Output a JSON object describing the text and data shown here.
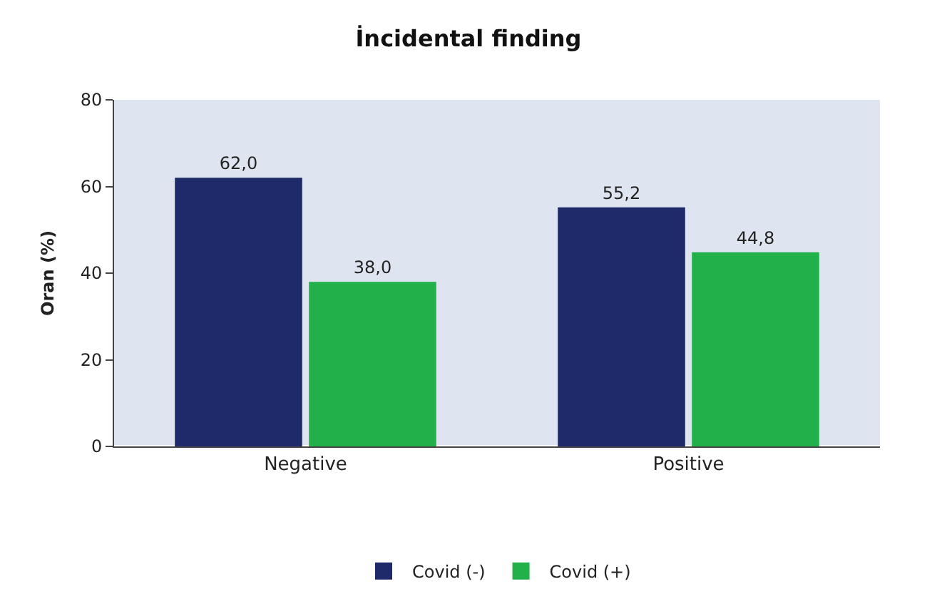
{
  "chart_data": {
    "type": "bar",
    "title": "İncidental finding",
    "ylabel": "Oran (%)",
    "categories": [
      "Negative",
      "Positive"
    ],
    "series": [
      {
        "name": "Covid (-)",
        "color": "#1f2a6b",
        "values": [
          62.0,
          55.2
        ],
        "value_labels": [
          "62,0",
          "55,2"
        ]
      },
      {
        "name": "Covid (+)",
        "color": "#22b04b",
        "values": [
          38.0,
          44.8
        ],
        "value_labels": [
          "38,0",
          "44,8"
        ]
      }
    ],
    "ylim": [
      0,
      80
    ],
    "yticks": [
      0,
      20,
      40,
      60,
      80
    ],
    "grid": false,
    "legend": "bottom"
  }
}
